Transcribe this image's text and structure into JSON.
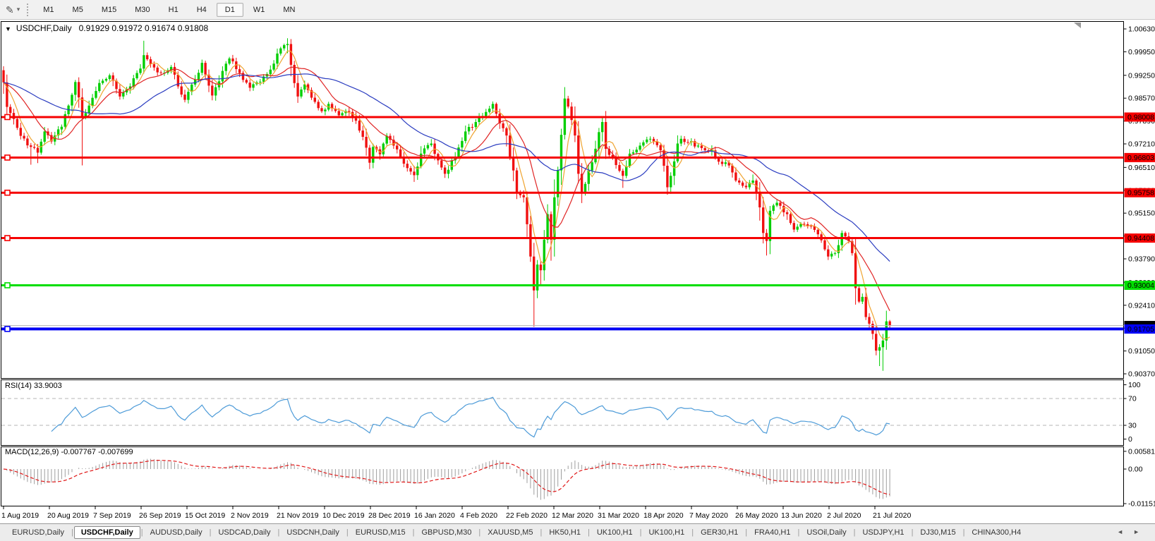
{
  "toolbar": {
    "cursor_icon": "✎",
    "cursor_dropdown_icon": "▾",
    "timeframes": [
      "M1",
      "M5",
      "M15",
      "M30",
      "H1",
      "H4",
      "D1",
      "W1",
      "MN"
    ],
    "active_timeframe": "D1"
  },
  "chart_data": {
    "type": "candlestick",
    "symbol": "USDCHF",
    "period": "Daily",
    "title": {
      "dropdown_icon": "▼",
      "symbol_text": "USDCHF,Daily",
      "ohlc_text": "0.91929 0.91972 0.91674 0.91808",
      "open": 0.91929,
      "high": 0.91972,
      "low": 0.91674,
      "close": 0.91808
    },
    "price_axis_ticks": [
      "1.00630",
      "0.99950",
      "0.99250",
      "0.98570",
      "0.97890",
      "0.97210",
      "0.96510",
      "0.95830",
      "0.95150",
      "0.94470",
      "0.93790",
      "0.93090",
      "0.92410",
      "0.91730",
      "0.91050",
      "0.90370"
    ],
    "date_labels": [
      "1 Aug 2019",
      "20 Aug 2019",
      "7 Sep 2019",
      "26 Sep 2019",
      "15 Oct 2019",
      "2 Nov 2019",
      "21 Nov 2019",
      "10 Dec 2019",
      "28 Dec 2019",
      "16 Jan 2020",
      "4 Feb 2020",
      "22 Feb 2020",
      "12 Mar 2020",
      "31 Mar 2020",
      "18 Apr 2020",
      "7 May 2020",
      "26 May 2020",
      "13 Jun 2020",
      "2 Jul 2020",
      "21 Jul 2020"
    ],
    "horizontal_lines": [
      {
        "price": 0.98008,
        "label": "0.98008",
        "color": "#F50000",
        "width": 3
      },
      {
        "price": 0.96803,
        "label": "0.96803",
        "color": "#F50000",
        "width": 3
      },
      {
        "price": 0.95758,
        "label": "0.95758",
        "color": "#F50000",
        "width": 3
      },
      {
        "price": 0.94408,
        "label": "0.94408",
        "color": "#F50000",
        "width": 3
      },
      {
        "price": 0.93004,
        "label": "0.93004",
        "color": "#00DE00",
        "width": 3
      },
      {
        "price": 0.91705,
        "label": "0.91705",
        "color": "#0000F5",
        "width": 4
      }
    ],
    "current_price_line": {
      "price": 0.91808,
      "label": "0.91808",
      "line_color": "#b9b9b9",
      "box_color": "#000000"
    },
    "candles": {
      "up_color": "#00CE00",
      "down_color": "#F01010",
      "bar_count": 260,
      "first_open": 0.994,
      "keyframes": [
        [
          0,
          0.9904,
          0.987,
          0.9952
        ],
        [
          1,
          0.9831
        ],
        [
          3,
          0.9795
        ],
        [
          5,
          0.9745
        ],
        [
          8,
          0.9712,
          0.9659,
          null
        ],
        [
          10,
          0.9695,
          0.9664,
          null
        ],
        [
          12,
          0.9758
        ],
        [
          14,
          0.9728
        ],
        [
          17,
          0.9772
        ],
        [
          19,
          0.9835
        ],
        [
          21,
          0.9905
        ],
        [
          23,
          0.98,
          0.9657,
          null
        ],
        [
          26,
          0.9858
        ],
        [
          28,
          0.9902
        ],
        [
          31,
          0.9925
        ],
        [
          34,
          0.9862
        ],
        [
          37,
          0.9892
        ],
        [
          40,
          0.9945
        ],
        [
          41,
          0.9985,
          null,
          1.0028
        ],
        [
          43,
          0.9958
        ],
        [
          46,
          0.9932
        ],
        [
          49,
          0.995
        ],
        [
          51,
          0.9892
        ],
        [
          53,
          0.9852
        ],
        [
          56,
          0.9912
        ],
        [
          58,
          0.9962
        ],
        [
          61,
          0.9865
        ],
        [
          64,
          0.9938
        ],
        [
          66,
          0.9975
        ],
        [
          69,
          0.9932
        ],
        [
          72,
          0.9888
        ],
        [
          75,
          0.9906
        ],
        [
          78,
          0.9942
        ],
        [
          81,
          1.0005
        ],
        [
          83,
          1.0018,
          null,
          1.0035
        ],
        [
          85,
          0.9902
        ],
        [
          86,
          0.9862
        ],
        [
          88,
          0.9898
        ],
        [
          91,
          0.9846
        ],
        [
          93,
          0.9818
        ],
        [
          95,
          0.984
        ],
        [
          98,
          0.9806
        ],
        [
          101,
          0.9816
        ],
        [
          103,
          0.979
        ],
        [
          105,
          0.9742
        ],
        [
          107,
          0.9665,
          0.9646,
          null
        ],
        [
          108,
          0.9712
        ],
        [
          110,
          0.969
        ],
        [
          112,
          0.9745
        ],
        [
          114,
          0.9716
        ],
        [
          117,
          0.9662
        ],
        [
          120,
          0.9628,
          0.9608,
          null
        ],
        [
          122,
          0.9692
        ],
        [
          125,
          0.9722
        ],
        [
          127,
          0.9672
        ],
        [
          129,
          0.9632
        ],
        [
          132,
          0.9682
        ],
        [
          135,
          0.9758
        ],
        [
          138,
          0.9786
        ],
        [
          141,
          0.9816
        ],
        [
          143,
          0.984,
          null,
          0.9847
        ],
        [
          145,
          0.9782
        ],
        [
          147,
          0.9746
        ],
        [
          148,
          0.9682
        ],
        [
          149,
          0.9642,
          0.961,
          null
        ],
        [
          150,
          0.9576
        ],
        [
          152,
          0.9562
        ],
        [
          153,
          0.9482
        ],
        [
          154,
          0.9386,
          0.937,
          null
        ],
        [
          155,
          0.9285,
          0.9177,
          null
        ],
        [
          156,
          0.9362
        ],
        [
          157,
          0.9345
        ],
        [
          158,
          0.9436
        ],
        [
          159,
          0.9512
        ],
        [
          160,
          0.9436
        ],
        [
          161,
          0.9562
        ],
        [
          162,
          0.9642
        ],
        [
          163,
          0.9748
        ],
        [
          164,
          0.9856,
          null,
          0.989
        ],
        [
          165,
          0.9832
        ],
        [
          166,
          0.9792
        ],
        [
          167,
          0.9746
        ],
        [
          168,
          0.9632
        ],
        [
          169,
          0.9576,
          0.9545,
          null
        ],
        [
          170,
          0.9602
        ],
        [
          171,
          0.9642
        ],
        [
          172,
          0.9666
        ],
        [
          174,
          0.9756
        ],
        [
          175,
          0.9786,
          null,
          0.9802
        ],
        [
          176,
          0.9706
        ],
        [
          178,
          0.9682
        ],
        [
          181,
          0.9626,
          0.959,
          null
        ],
        [
          183,
          0.9692
        ],
        [
          186,
          0.9716
        ],
        [
          189,
          0.9736
        ],
        [
          192,
          0.9702
        ],
        [
          193,
          0.9656
        ],
        [
          194,
          0.9592,
          0.957,
          null
        ],
        [
          195,
          0.9626
        ],
        [
          197,
          0.9722
        ],
        [
          198,
          0.9736
        ],
        [
          200,
          0.9726
        ],
        [
          203,
          0.9716
        ],
        [
          207,
          0.9702
        ],
        [
          209,
          0.9668
        ],
        [
          211,
          0.9666
        ],
        [
          213,
          0.9636
        ],
        [
          214,
          0.9612
        ],
        [
          215,
          0.9606
        ],
        [
          217,
          0.9592
        ],
        [
          219,
          0.9612
        ],
        [
          221,
          0.9532
        ],
        [
          222,
          0.9456,
          0.9425,
          null
        ],
        [
          223,
          0.9432,
          0.9389,
          null
        ],
        [
          224,
          0.9522
        ],
        [
          226,
          0.9546
        ],
        [
          229,
          0.9512
        ],
        [
          231,
          0.9466
        ],
        [
          234,
          0.9482
        ],
        [
          236,
          0.9476
        ],
        [
          238,
          0.9452
        ],
        [
          241,
          0.9386
        ],
        [
          243,
          0.9396
        ],
        [
          245,
          0.9456
        ],
        [
          247,
          0.9432
        ],
        [
          248,
          0.9396
        ],
        [
          249,
          0.9292
        ],
        [
          250,
          0.9252
        ],
        [
          251,
          0.9266
        ],
        [
          252,
          0.9206
        ],
        [
          253,
          0.9186
        ],
        [
          254,
          0.9156
        ],
        [
          255,
          0.9106
        ],
        [
          256,
          0.9116,
          0.906,
          null
        ],
        [
          257,
          0.9136,
          0.9046,
          null
        ],
        [
          258,
          0.9193
        ],
        [
          259,
          0.91808,
          0.91674,
          0.91972
        ]
      ]
    },
    "moving_averages": [
      {
        "period": 5,
        "color": "#EFA430"
      },
      {
        "period": 13,
        "color": "#E02424"
      },
      {
        "period": 34,
        "color": "#2A3CC0"
      }
    ],
    "rsi": {
      "display": "RSI(14) 33.9003",
      "period": 14,
      "last_value": 33.9003,
      "levels": [
        70,
        30
      ],
      "axis_labels": [
        "100",
        "70",
        "30",
        "0"
      ],
      "line_color": "#4D9BD8"
    },
    "macd": {
      "display": "MACD(12,26,9) -0.007767 -0.007699",
      "fast": 12,
      "slow": 26,
      "signal": 9,
      "last_macd": -0.007767,
      "last_signal": -0.007699,
      "axis_labels": [
        "0.005818",
        "0.00",
        "-0.011514"
      ],
      "axis_range": [
        0.005818,
        -0.011514
      ],
      "histogram_color": "#9e9e9e",
      "signal_color": "#E01818"
    }
  },
  "tabs": {
    "items": [
      "EURUSD,Daily",
      "USDCHF,Daily",
      "AUDUSD,Daily",
      "USDCAD,Daily",
      "USDCNH,Daily",
      "EURUSD,M15",
      "GBPUSD,M30",
      "XAUUSD,M5",
      "HK50,H1",
      "UK100,H1",
      "UK100,H1",
      "GER30,H1",
      "FRA40,H1",
      "USOil,Daily",
      "USDJPY,H1",
      "DJ30,M15",
      "CHINA300,H4"
    ],
    "active_index": 1,
    "scroll_left_icon": "◄",
    "scroll_right_icon": "►"
  }
}
